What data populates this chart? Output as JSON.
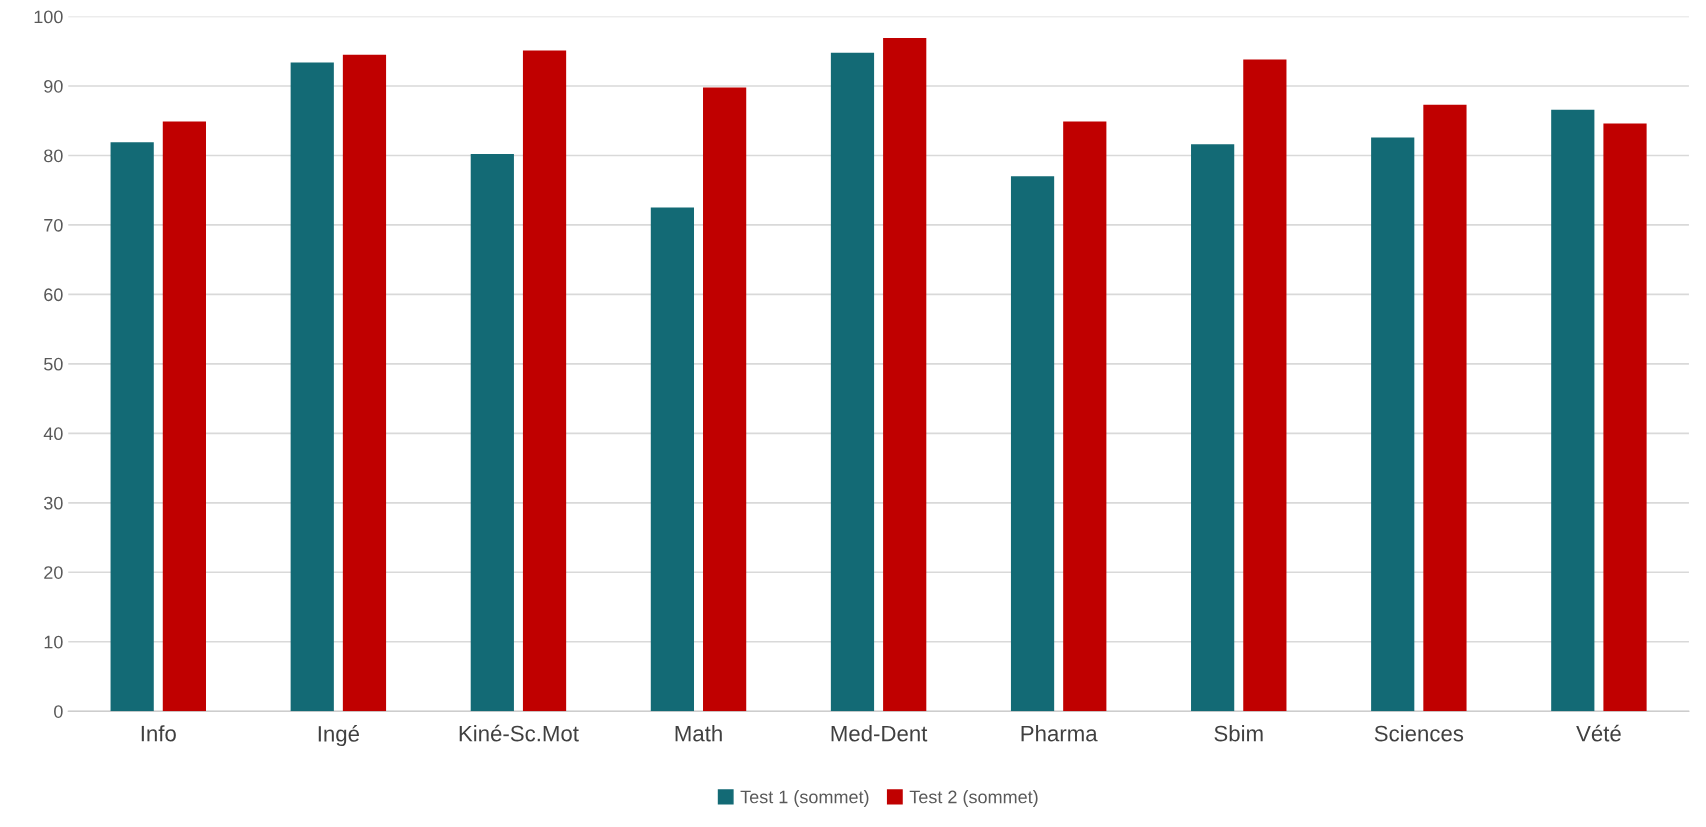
{
  "chart_data": {
    "type": "bar",
    "categories": [
      "Info",
      "Ingé",
      "Kiné-Sc.Mot",
      "Math",
      "Med-Dent",
      "Pharma",
      "Sbim",
      "Sciences",
      "Vété"
    ],
    "series": [
      {
        "name": "Test 1 (sommet)",
        "color": "#136a75",
        "values": [
          81.9,
          93.4,
          80.2,
          72.5,
          94.8,
          77.0,
          81.6,
          82.6,
          86.6
        ]
      },
      {
        "name": "Test 2 (sommet)",
        "color": "#c00000",
        "values": [
          84.9,
          94.5,
          95.1,
          89.8,
          96.9,
          84.9,
          93.8,
          87.3,
          84.6
        ]
      }
    ],
    "ylim": [
      0,
      100
    ],
    "yticks": [
      0,
      10,
      20,
      30,
      40,
      50,
      60,
      70,
      80,
      90,
      100
    ],
    "grid": "y",
    "legend": "bottom"
  }
}
